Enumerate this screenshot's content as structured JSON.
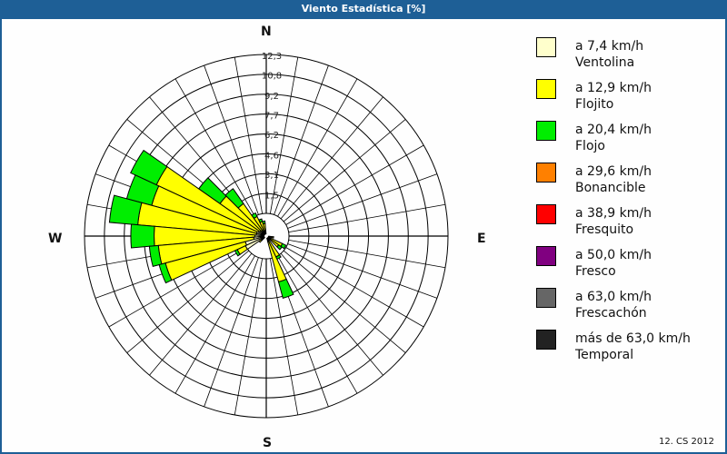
{
  "window": {
    "title": "Viento Estadística [%]"
  },
  "footer": {
    "text": "12. CS 2012"
  },
  "compass": {
    "n": "N",
    "e": "E",
    "s": "S",
    "w": "W"
  },
  "legend": [
    {
      "range": "a 7,4 km/h",
      "name": "Ventolina",
      "color": "#ffffcc"
    },
    {
      "range": "a 12,9 km/h",
      "name": "Flojito",
      "color": "#ffff00"
    },
    {
      "range": "a 20,4 km/h",
      "name": "Flojo",
      "color": "#00ee00"
    },
    {
      "range": "a 29,6 km/h",
      "name": "Bonancible",
      "color": "#ff8000"
    },
    {
      "range": "a 38,9 km/h",
      "name": "Fresquito",
      "color": "#ff0000"
    },
    {
      "range": "a 50,0 km/h",
      "name": "Fresco",
      "color": "#800080"
    },
    {
      "range": "a 63,0 km/h",
      "name": "Frescachón",
      "color": "#666666"
    },
    {
      "range": "más de 63,0 km/h",
      "name": "Temporal",
      "color": "#222222"
    }
  ],
  "chart_data": {
    "type": "wind-rose",
    "title": "Viento Estadística [%]",
    "radial_ticks": [
      1.5,
      3.1,
      4.6,
      6.2,
      7.7,
      9.2,
      10.8,
      12.3
    ],
    "radial_max": 12.3,
    "sector_width_deg": 10,
    "series_names": [
      "Ventolina",
      "Flojito",
      "Flojo"
    ],
    "sectors": [
      {
        "dir": 350,
        "values": [
          0.2,
          0.6,
          0.2
        ]
      },
      {
        "dir": 340,
        "values": [
          0.2,
          0.8,
          0.2
        ]
      },
      {
        "dir": 330,
        "values": [
          0.3,
          1.2,
          0.3
        ]
      },
      {
        "dir": 320,
        "values": [
          0.3,
          2.6,
          1.4
        ]
      },
      {
        "dir": 310,
        "values": [
          0.4,
          3.8,
          2.0
        ]
      },
      {
        "dir": 300,
        "values": [
          0.5,
          8.7,
          2.2
        ]
      },
      {
        "dir": 290,
        "values": [
          0.6,
          8.4,
          2.0
        ]
      },
      {
        "dir": 280,
        "values": [
          0.6,
          9.2,
          2.2
        ]
      },
      {
        "dir": 270,
        "values": [
          0.7,
          7.8,
          1.8
        ]
      },
      {
        "dir": 260,
        "values": [
          0.8,
          7.4,
          0.7
        ]
      },
      {
        "dir": 250,
        "values": [
          1.5,
          6.4,
          0.5
        ]
      },
      {
        "dir": 240,
        "values": [
          1.6,
          0.7,
          0.2
        ]
      },
      {
        "dir": 230,
        "values": [
          0.3,
          0.2,
          0.0
        ]
      },
      {
        "dir": 160,
        "values": [
          0.3,
          3.2,
          1.3
        ]
      },
      {
        "dir": 150,
        "values": [
          0.2,
          1.4,
          0.2
        ]
      },
      {
        "dir": 130,
        "values": [
          0.2,
          0.8,
          0.3
        ]
      },
      {
        "dir": 120,
        "values": [
          0.1,
          1.1,
          0.3
        ]
      },
      {
        "dir": 100,
        "values": [
          0.1,
          0.3,
          0.0
        ]
      }
    ]
  }
}
